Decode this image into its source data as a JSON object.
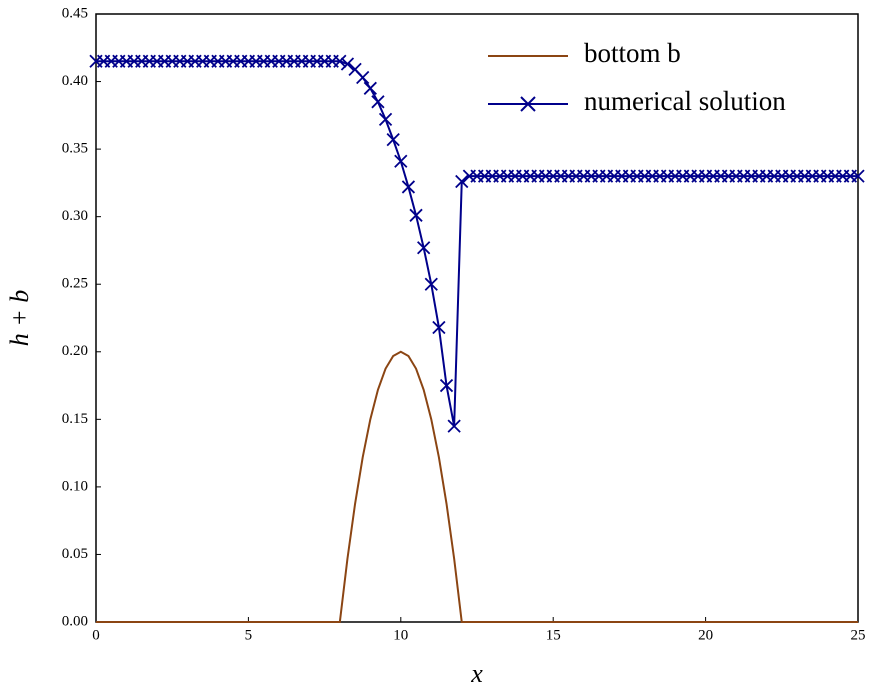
{
  "chart_data": {
    "type": "line",
    "xlabel": "x",
    "ylabel": "h + b",
    "x": [
      0,
      0.25,
      0.5,
      0.75,
      1,
      1.25,
      1.5,
      1.75,
      2,
      2.25,
      2.5,
      2.75,
      3,
      3.25,
      3.5,
      3.75,
      4,
      4.25,
      4.5,
      4.75,
      5,
      5.25,
      5.5,
      5.75,
      6,
      6.25,
      6.5,
      6.75,
      7,
      7.25,
      7.5,
      7.75,
      8,
      8.25,
      8.5,
      8.75,
      9,
      9.25,
      9.5,
      9.75,
      10,
      10.25,
      10.5,
      10.75,
      11,
      11.25,
      11.5,
      11.75,
      12,
      12.25,
      12.5,
      12.75,
      13,
      13.25,
      13.5,
      13.75,
      14,
      14.25,
      14.5,
      14.75,
      15,
      15.25,
      15.5,
      15.75,
      16,
      16.25,
      16.5,
      16.75,
      17,
      17.25,
      17.5,
      17.75,
      18,
      18.25,
      18.5,
      18.75,
      19,
      19.25,
      19.5,
      19.75,
      20,
      20.25,
      20.5,
      20.75,
      21,
      21.25,
      21.5,
      21.75,
      22,
      22.25,
      22.5,
      22.75,
      23,
      23.25,
      23.5,
      23.75,
      24,
      24.25,
      24.5,
      24.75,
      25
    ],
    "series": [
      {
        "name": "bottom b",
        "color": "#8b4513",
        "marker": "none",
        "values": [
          0,
          0,
          0,
          0,
          0,
          0,
          0,
          0,
          0,
          0,
          0,
          0,
          0,
          0,
          0,
          0,
          0,
          0,
          0,
          0,
          0,
          0,
          0,
          0,
          0,
          0,
          0,
          0,
          0,
          0,
          0,
          0,
          0,
          0.0469,
          0.0875,
          0.1219,
          0.15,
          0.1719,
          0.1875,
          0.1969,
          0.2,
          0.1969,
          0.1875,
          0.1719,
          0.15,
          0.1219,
          0.0875,
          0.0469,
          0,
          0,
          0,
          0,
          0,
          0,
          0,
          0,
          0,
          0,
          0,
          0,
          0,
          0,
          0,
          0,
          0,
          0,
          0,
          0,
          0,
          0,
          0,
          0,
          0,
          0,
          0,
          0,
          0,
          0,
          0,
          0,
          0,
          0,
          0,
          0,
          0,
          0,
          0,
          0,
          0,
          0,
          0,
          0,
          0,
          0,
          0,
          0,
          0,
          0,
          0,
          0,
          0
        ]
      },
      {
        "name": "numerical solution",
        "color": "#00008b",
        "marker": "x",
        "values": [
          0.415,
          0.415,
          0.415,
          0.415,
          0.415,
          0.415,
          0.415,
          0.415,
          0.415,
          0.415,
          0.415,
          0.415,
          0.415,
          0.415,
          0.415,
          0.415,
          0.415,
          0.415,
          0.415,
          0.415,
          0.415,
          0.415,
          0.415,
          0.415,
          0.415,
          0.415,
          0.415,
          0.415,
          0.415,
          0.415,
          0.415,
          0.415,
          0.415,
          0.413,
          0.409,
          0.403,
          0.395,
          0.385,
          0.372,
          0.357,
          0.341,
          0.322,
          0.301,
          0.277,
          0.25,
          0.218,
          0.175,
          0.145,
          0.326,
          0.33,
          0.33,
          0.33,
          0.33,
          0.33,
          0.33,
          0.33,
          0.33,
          0.33,
          0.33,
          0.33,
          0.33,
          0.33,
          0.33,
          0.33,
          0.33,
          0.33,
          0.33,
          0.33,
          0.33,
          0.33,
          0.33,
          0.33,
          0.33,
          0.33,
          0.33,
          0.33,
          0.33,
          0.33,
          0.33,
          0.33,
          0.33,
          0.33,
          0.33,
          0.33,
          0.33,
          0.33,
          0.33,
          0.33,
          0.33,
          0.33,
          0.33,
          0.33,
          0.33,
          0.33,
          0.33,
          0.33,
          0.33,
          0.33,
          0.33,
          0.33,
          0.33
        ]
      }
    ],
    "xlim": [
      0,
      25
    ],
    "xticks": [
      0,
      5,
      10,
      15,
      20,
      25
    ],
    "ylim": [
      0,
      0.45
    ],
    "yticks": [
      {
        "value": 0,
        "label": "0.00"
      },
      {
        "value": 0.05,
        "label": "0.05"
      },
      {
        "value": 0.1,
        "label": "0.10"
      },
      {
        "value": 0.15,
        "label": "0.15"
      },
      {
        "value": 0.2,
        "label": "0.20"
      },
      {
        "value": 0.25,
        "label": "0.25"
      },
      {
        "value": 0.3,
        "label": "0.30"
      },
      {
        "value": 0.35,
        "label": "0.35"
      },
      {
        "value": 0.4,
        "label": "0.40"
      },
      {
        "value": 0.45,
        "label": "0.45"
      }
    ],
    "legend": "upper right",
    "grid": false
  }
}
